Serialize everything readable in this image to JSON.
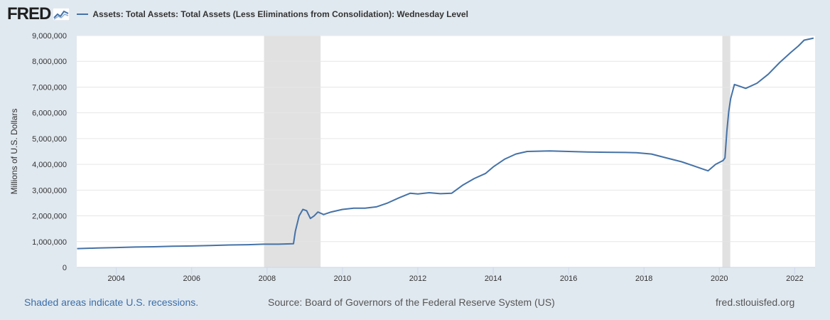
{
  "header": {
    "logo_text": "FRED",
    "legend_label": "Assets: Total Assets: Total Assets (Less Eliminations from Consolidation): Wednesday Level"
  },
  "colors": {
    "series": "#4572a7",
    "recession": "#e1e1e1",
    "background": "#e1e9f0",
    "plot": "#ffffff",
    "grid": "#e6e6e6"
  },
  "footer": {
    "recession_note": "Shaded areas indicate U.S. recessions.",
    "source": "Source: Board of Governors of the Federal Reserve System (US)",
    "site": "fred.stlouisfed.org"
  },
  "chart_data": {
    "type": "line",
    "title": "Assets: Total Assets: Total Assets (Less Eliminations from Consolidation): Wednesday Level",
    "xlabel": "",
    "ylabel": "Millions of U.S. Dollars",
    "xlim": [
      2002.95,
      2022.54
    ],
    "ylim": [
      0,
      9000000
    ],
    "grid": true,
    "legend": "top-left",
    "x_ticks": [
      2004,
      2006,
      2008,
      2010,
      2012,
      2014,
      2016,
      2018,
      2020,
      2022
    ],
    "x_tick_labels": [
      "2004",
      "2006",
      "2008",
      "2010",
      "2012",
      "2014",
      "2016",
      "2018",
      "2020",
      "2022"
    ],
    "y_ticks": [
      0,
      1000000,
      2000000,
      3000000,
      4000000,
      5000000,
      6000000,
      7000000,
      8000000,
      9000000
    ],
    "y_tick_labels": [
      "0",
      "1,000,000",
      "2,000,000",
      "3,000,000",
      "4,000,000",
      "5,000,000",
      "6,000,000",
      "7,000,000",
      "8,000,000",
      "9,000,000"
    ],
    "recessions": [
      [
        2007.92,
        2009.42
      ],
      [
        2020.08,
        2020.29
      ]
    ],
    "series": [
      {
        "name": "Assets: Total Assets: Total Assets (Less Eliminations from Consolidation): Wednesday Level",
        "x": [
          2002.96,
          2003.5,
          2004.0,
          2004.5,
          2005.0,
          2005.5,
          2006.0,
          2006.5,
          2007.0,
          2007.5,
          2007.9,
          2008.3,
          2008.7,
          2008.75,
          2008.85,
          2008.95,
          2009.05,
          2009.15,
          2009.25,
          2009.35,
          2009.5,
          2009.7,
          2010.0,
          2010.3,
          2010.6,
          2010.9,
          2011.2,
          2011.5,
          2011.8,
          2012.0,
          2012.3,
          2012.6,
          2012.9,
          2013.2,
          2013.5,
          2013.8,
          2014.0,
          2014.3,
          2014.6,
          2014.9,
          2015.5,
          2016.0,
          2016.5,
          2017.0,
          2017.5,
          2017.8,
          2018.2,
          2018.6,
          2019.0,
          2019.3,
          2019.6,
          2019.7,
          2019.9,
          2020.1,
          2020.15,
          2020.2,
          2020.25,
          2020.3,
          2020.4,
          2020.5,
          2020.7,
          2021.0,
          2021.3,
          2021.6,
          2021.9,
          2022.1,
          2022.25,
          2022.5
        ],
        "y": [
          730000,
          750000,
          770000,
          790000,
          800000,
          820000,
          830000,
          850000,
          870000,
          880000,
          900000,
          900000,
          920000,
          1400000,
          2000000,
          2250000,
          2200000,
          1900000,
          2000000,
          2150000,
          2050000,
          2150000,
          2250000,
          2300000,
          2300000,
          2350000,
          2500000,
          2700000,
          2880000,
          2850000,
          2900000,
          2860000,
          2880000,
          3200000,
          3450000,
          3650000,
          3900000,
          4200000,
          4400000,
          4500000,
          4520000,
          4500000,
          4480000,
          4470000,
          4460000,
          4450000,
          4400000,
          4250000,
          4100000,
          3950000,
          3800000,
          3750000,
          4000000,
          4150000,
          4250000,
          5300000,
          6050000,
          6550000,
          7100000,
          7050000,
          6950000,
          7150000,
          7500000,
          7950000,
          8350000,
          8600000,
          8820000,
          8900000
        ]
      }
    ]
  }
}
